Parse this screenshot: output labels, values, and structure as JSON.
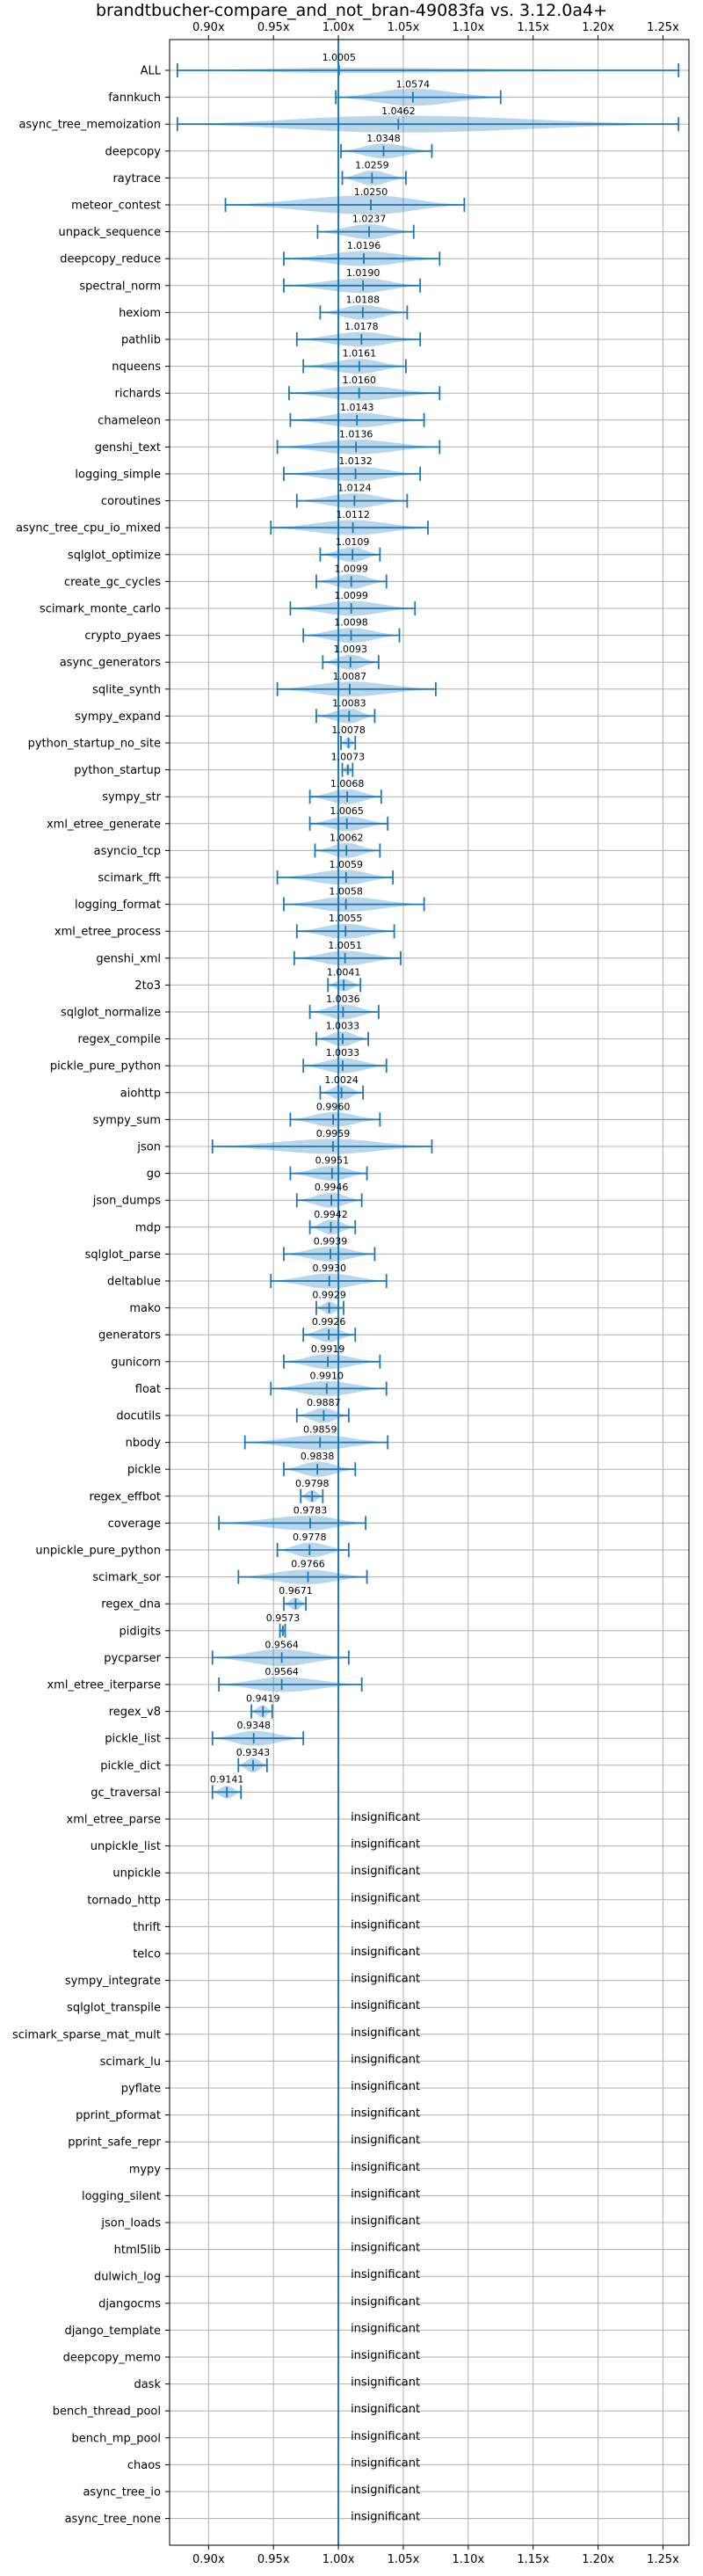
{
  "chart_data": {
    "type": "violin",
    "title": "brandtbucher-compare_and_not_bran-49083fa vs. 3.12.0a4+",
    "xlim": [
      0.87,
      1.27
    ],
    "reference_x": 1.0,
    "ticks": [
      0.9,
      0.95,
      1.0,
      1.05,
      1.1,
      1.15,
      1.2,
      1.25
    ],
    "tick_labels": [
      "0.90x",
      "0.95x",
      "1.00x",
      "1.05x",
      "1.10x",
      "1.15x",
      "1.20x",
      "1.25x"
    ],
    "grid": true,
    "insignificant_text": "insignificant",
    "benchmarks": [
      {
        "name": "ALL",
        "value": "1.0005",
        "mean": 1.0005,
        "min": 0.876,
        "max": 1.262,
        "width": 0.25
      },
      {
        "name": "fannkuch",
        "value": "1.0574",
        "mean": 1.0574,
        "min": 0.998,
        "max": 1.125,
        "width": 0.8
      },
      {
        "name": "async_tree_memoization",
        "value": "1.0462",
        "mean": 1.0462,
        "min": 0.876,
        "max": 1.262,
        "width": 0.8
      },
      {
        "name": "deepcopy",
        "value": "1.0348",
        "mean": 1.0348,
        "min": 1.002,
        "max": 1.072,
        "width": 0.7
      },
      {
        "name": "raytrace",
        "value": "1.0259",
        "mean": 1.0259,
        "min": 1.003,
        "max": 1.052,
        "width": 0.7
      },
      {
        "name": "meteor_contest",
        "value": "1.0250",
        "mean": 1.025,
        "min": 0.913,
        "max": 1.097,
        "width": 0.9
      },
      {
        "name": "unpack_sequence",
        "value": "1.0237",
        "mean": 1.0237,
        "min": 0.984,
        "max": 1.058,
        "width": 0.7
      },
      {
        "name": "deepcopy_reduce",
        "value": "1.0196",
        "mean": 1.0196,
        "min": 0.958,
        "max": 1.078,
        "width": 0.7
      },
      {
        "name": "spectral_norm",
        "value": "1.0190",
        "mean": 1.019,
        "min": 0.958,
        "max": 1.063,
        "width": 0.7
      },
      {
        "name": "hexiom",
        "value": "1.0188",
        "mean": 1.0188,
        "min": 0.986,
        "max": 1.053,
        "width": 0.7
      },
      {
        "name": "pathlib",
        "value": "1.0178",
        "mean": 1.0178,
        "min": 0.968,
        "max": 1.063,
        "width": 0.7
      },
      {
        "name": "nqueens",
        "value": "1.0161",
        "mean": 1.0161,
        "min": 0.973,
        "max": 1.052,
        "width": 0.7
      },
      {
        "name": "richards",
        "value": "1.0160",
        "mean": 1.016,
        "min": 0.962,
        "max": 1.078,
        "width": 0.7
      },
      {
        "name": "chameleon",
        "value": "1.0143",
        "mean": 1.0143,
        "min": 0.963,
        "max": 1.066,
        "width": 0.7
      },
      {
        "name": "genshi_text",
        "value": "1.0136",
        "mean": 1.0136,
        "min": 0.953,
        "max": 1.078,
        "width": 0.7
      },
      {
        "name": "logging_simple",
        "value": "1.0132",
        "mean": 1.0132,
        "min": 0.958,
        "max": 1.063,
        "width": 0.7
      },
      {
        "name": "coroutines",
        "value": "1.0124",
        "mean": 1.0124,
        "min": 0.968,
        "max": 1.053,
        "width": 0.7
      },
      {
        "name": "async_tree_cpu_io_mixed",
        "value": "1.0112",
        "mean": 1.0112,
        "min": 0.948,
        "max": 1.069,
        "width": 0.7
      },
      {
        "name": "sqlglot_optimize",
        "value": "1.0109",
        "mean": 1.0109,
        "min": 0.986,
        "max": 1.032,
        "width": 0.7
      },
      {
        "name": "create_gc_cycles",
        "value": "1.0099",
        "mean": 1.0099,
        "min": 0.983,
        "max": 1.037,
        "width": 0.7
      },
      {
        "name": "scimark_monte_carlo",
        "value": "1.0099",
        "mean": 1.0099,
        "min": 0.963,
        "max": 1.059,
        "width": 0.7
      },
      {
        "name": "crypto_pyaes",
        "value": "1.0098",
        "mean": 1.0098,
        "min": 0.973,
        "max": 1.047,
        "width": 0.7
      },
      {
        "name": "async_generators",
        "value": "1.0093",
        "mean": 1.0093,
        "min": 0.988,
        "max": 1.031,
        "width": 0.7
      },
      {
        "name": "sqlite_synth",
        "value": "1.0087",
        "mean": 1.0087,
        "min": 0.953,
        "max": 1.075,
        "width": 0.7
      },
      {
        "name": "sympy_expand",
        "value": "1.0083",
        "mean": 1.0083,
        "min": 0.983,
        "max": 1.028,
        "width": 0.7
      },
      {
        "name": "python_startup_no_site",
        "value": "1.0078",
        "mean": 1.0078,
        "min": 1.002,
        "max": 1.013,
        "width": 0.5
      },
      {
        "name": "python_startup",
        "value": "1.0073",
        "mean": 1.0073,
        "min": 1.003,
        "max": 1.011,
        "width": 0.5
      },
      {
        "name": "sympy_str",
        "value": "1.0068",
        "mean": 1.0068,
        "min": 0.978,
        "max": 1.033,
        "width": 0.7
      },
      {
        "name": "xml_etree_generate",
        "value": "1.0065",
        "mean": 1.0065,
        "min": 0.978,
        "max": 1.038,
        "width": 0.7
      },
      {
        "name": "asyncio_tcp",
        "value": "1.0062",
        "mean": 1.0062,
        "min": 0.982,
        "max": 1.032,
        "width": 0.7
      },
      {
        "name": "scimark_fft",
        "value": "1.0059",
        "mean": 1.0059,
        "min": 0.953,
        "max": 1.042,
        "width": 0.7
      },
      {
        "name": "logging_format",
        "value": "1.0058",
        "mean": 1.0058,
        "min": 0.958,
        "max": 1.066,
        "width": 0.7
      },
      {
        "name": "xml_etree_process",
        "value": "1.0055",
        "mean": 1.0055,
        "min": 0.968,
        "max": 1.043,
        "width": 0.7
      },
      {
        "name": "genshi_xml",
        "value": "1.0051",
        "mean": 1.0051,
        "min": 0.966,
        "max": 1.048,
        "width": 0.7
      },
      {
        "name": "2to3",
        "value": "1.0041",
        "mean": 1.0041,
        "min": 0.992,
        "max": 1.017,
        "width": 0.6
      },
      {
        "name": "sqlglot_normalize",
        "value": "1.0036",
        "mean": 1.0036,
        "min": 0.978,
        "max": 1.031,
        "width": 0.7
      },
      {
        "name": "regex_compile",
        "value": "1.0033",
        "mean": 1.0033,
        "min": 0.983,
        "max": 1.023,
        "width": 0.7
      },
      {
        "name": "pickle_pure_python",
        "value": "1.0033",
        "mean": 1.0033,
        "min": 0.973,
        "max": 1.037,
        "width": 0.7
      },
      {
        "name": "aiohttp",
        "value": "1.0024",
        "mean": 1.0024,
        "min": 0.986,
        "max": 1.019,
        "width": 0.7
      },
      {
        "name": "sympy_sum",
        "value": "0.9960",
        "mean": 0.996,
        "min": 0.963,
        "max": 1.032,
        "width": 0.7
      },
      {
        "name": "json",
        "value": "0.9959",
        "mean": 0.9959,
        "min": 0.903,
        "max": 1.072,
        "width": 0.7
      },
      {
        "name": "go",
        "value": "0.9951",
        "mean": 0.9951,
        "min": 0.963,
        "max": 1.022,
        "width": 0.7
      },
      {
        "name": "json_dumps",
        "value": "0.9946",
        "mean": 0.9946,
        "min": 0.968,
        "max": 1.018,
        "width": 0.7
      },
      {
        "name": "mdp",
        "value": "0.9942",
        "mean": 0.9942,
        "min": 0.978,
        "max": 1.013,
        "width": 0.7
      },
      {
        "name": "sqlglot_parse",
        "value": "0.9939",
        "mean": 0.9939,
        "min": 0.958,
        "max": 1.028,
        "width": 0.7
      },
      {
        "name": "deltablue",
        "value": "0.9930",
        "mean": 0.993,
        "min": 0.948,
        "max": 1.037,
        "width": 0.7
      },
      {
        "name": "mako",
        "value": "0.9929",
        "mean": 0.9929,
        "min": 0.983,
        "max": 1.004,
        "width": 0.6
      },
      {
        "name": "generators",
        "value": "0.9926",
        "mean": 0.9926,
        "min": 0.973,
        "max": 1.013,
        "width": 0.7
      },
      {
        "name": "gunicorn",
        "value": "0.9919",
        "mean": 0.9919,
        "min": 0.958,
        "max": 1.032,
        "width": 0.7
      },
      {
        "name": "float",
        "value": "0.9910",
        "mean": 0.991,
        "min": 0.948,
        "max": 1.037,
        "width": 0.7
      },
      {
        "name": "docutils",
        "value": "0.9887",
        "mean": 0.9887,
        "min": 0.968,
        "max": 1.008,
        "width": 0.7
      },
      {
        "name": "nbody",
        "value": "0.9859",
        "mean": 0.9859,
        "min": 0.928,
        "max": 1.038,
        "width": 0.7
      },
      {
        "name": "pickle",
        "value": "0.9838",
        "mean": 0.9838,
        "min": 0.958,
        "max": 1.013,
        "width": 0.7
      },
      {
        "name": "regex_effbot",
        "value": "0.9798",
        "mean": 0.9798,
        "min": 0.971,
        "max": 0.988,
        "width": 0.6
      },
      {
        "name": "coverage",
        "value": "0.9783",
        "mean": 0.9783,
        "min": 0.908,
        "max": 1.021,
        "width": 0.7
      },
      {
        "name": "unpickle_pure_python",
        "value": "0.9778",
        "mean": 0.9778,
        "min": 0.953,
        "max": 1.008,
        "width": 0.7
      },
      {
        "name": "scimark_sor",
        "value": "0.9766",
        "mean": 0.9766,
        "min": 0.923,
        "max": 1.022,
        "width": 0.7
      },
      {
        "name": "regex_dna",
        "value": "0.9671",
        "mean": 0.9671,
        "min": 0.958,
        "max": 0.975,
        "width": 0.6
      },
      {
        "name": "pidigits",
        "value": "0.9573",
        "mean": 0.9573,
        "min": 0.955,
        "max": 0.959,
        "width": 0.5
      },
      {
        "name": "pycparser",
        "value": "0.9564",
        "mean": 0.9564,
        "min": 0.903,
        "max": 1.008,
        "width": 0.8
      },
      {
        "name": "xml_etree_iterparse",
        "value": "0.9564",
        "mean": 0.9564,
        "min": 0.908,
        "max": 1.018,
        "width": 0.7
      },
      {
        "name": "regex_v8",
        "value": "0.9419",
        "mean": 0.9419,
        "min": 0.933,
        "max": 0.949,
        "width": 0.6
      },
      {
        "name": "pickle_list",
        "value": "0.9348",
        "mean": 0.9348,
        "min": 0.903,
        "max": 0.973,
        "width": 0.7
      },
      {
        "name": "pickle_dict",
        "value": "0.9343",
        "mean": 0.9343,
        "min": 0.923,
        "max": 0.945,
        "width": 0.7
      },
      {
        "name": "gc_traversal",
        "value": "0.9141",
        "mean": 0.9141,
        "min": 0.903,
        "max": 0.925,
        "width": 0.6
      },
      {
        "name": "xml_etree_parse",
        "insignificant": true
      },
      {
        "name": "unpickle_list",
        "insignificant": true
      },
      {
        "name": "unpickle",
        "insignificant": true
      },
      {
        "name": "tornado_http",
        "insignificant": true
      },
      {
        "name": "thrift",
        "insignificant": true
      },
      {
        "name": "telco",
        "insignificant": true
      },
      {
        "name": "sympy_integrate",
        "insignificant": true
      },
      {
        "name": "sqlglot_transpile",
        "insignificant": true
      },
      {
        "name": "scimark_sparse_mat_mult",
        "insignificant": true
      },
      {
        "name": "scimark_lu",
        "insignificant": true
      },
      {
        "name": "pyflate",
        "insignificant": true
      },
      {
        "name": "pprint_pformat",
        "insignificant": true
      },
      {
        "name": "pprint_safe_repr",
        "insignificant": true
      },
      {
        "name": "mypy",
        "insignificant": true
      },
      {
        "name": "logging_silent",
        "insignificant": true
      },
      {
        "name": "json_loads",
        "insignificant": true
      },
      {
        "name": "html5lib",
        "insignificant": true
      },
      {
        "name": "dulwich_log",
        "insignificant": true
      },
      {
        "name": "djangocms",
        "insignificant": true
      },
      {
        "name": "django_template",
        "insignificant": true
      },
      {
        "name": "deepcopy_memo",
        "insignificant": true
      },
      {
        "name": "dask",
        "insignificant": true
      },
      {
        "name": "bench_thread_pool",
        "insignificant": true
      },
      {
        "name": "bench_mp_pool",
        "insignificant": true
      },
      {
        "name": "chaos",
        "insignificant": true
      },
      {
        "name": "async_tree_io",
        "insignificant": true
      },
      {
        "name": "async_tree_none",
        "insignificant": true
      }
    ],
    "colors": {
      "violin": "#1f77b4",
      "grid": "#b0b0b0",
      "frame": "#000000"
    }
  }
}
